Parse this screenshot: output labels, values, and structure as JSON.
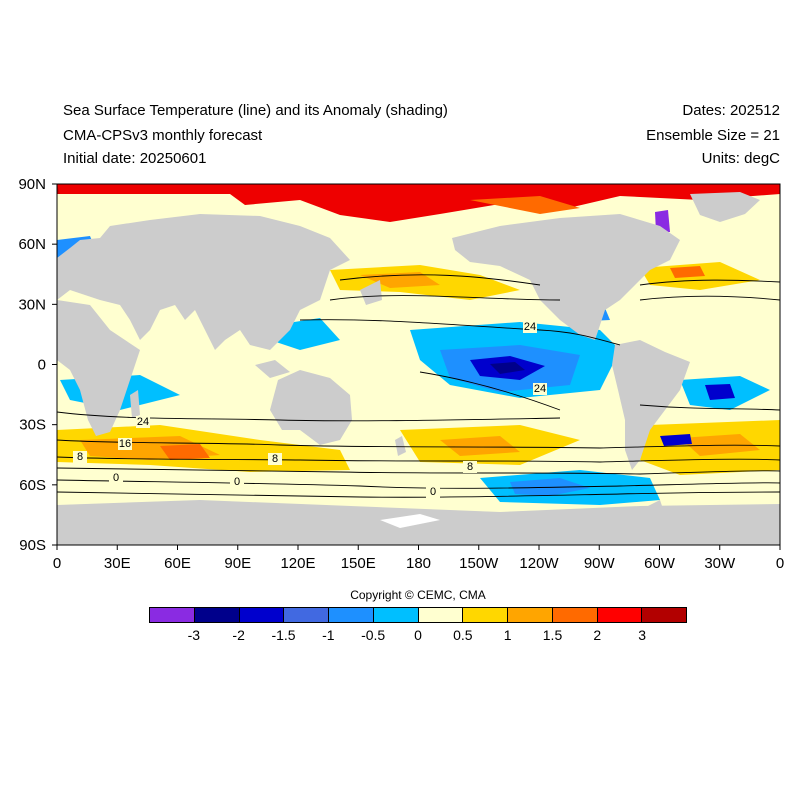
{
  "header": {
    "title": "Sea Surface Temperature (line) and its Anomaly (shading)",
    "model": "CMA-CPSv3 monthly forecast",
    "initial_date": "Initial date: 20250601",
    "dates": "Dates: 202512",
    "ensemble": "Ensemble Size = 21",
    "units": "Units: degC"
  },
  "axes": {
    "y_ticks": [
      "90N",
      "60N",
      "30N",
      "0",
      "30S",
      "60S",
      "90S"
    ],
    "x_ticks": [
      "0",
      "30E",
      "60E",
      "90E",
      "120E",
      "150E",
      "180",
      "150W",
      "120W",
      "90W",
      "60W",
      "30W",
      "0"
    ]
  },
  "contour_labels": [
    "24",
    "24",
    "24",
    "8",
    "8",
    "8",
    "0",
    "0",
    "0",
    "16"
  ],
  "copyright": "Copyright © CEMC, CMA",
  "colorbar": {
    "labels": [
      "-3",
      "-2",
      "-1.5",
      "-1",
      "-0.5",
      "0",
      "0.5",
      "1",
      "1.5",
      "2",
      "3"
    ],
    "colors": [
      "#8a2be2",
      "#00008b",
      "#0000cd",
      "#4169e1",
      "#1e90ff",
      "#00bfff",
      "#ffffd0",
      "#ffd700",
      "#ffa500",
      "#ff6a00",
      "#ff0000",
      "#b20000"
    ]
  },
  "colors": {
    "land": "#cccccc",
    "neutral": "#ffffd0",
    "contour": "#000000"
  }
}
